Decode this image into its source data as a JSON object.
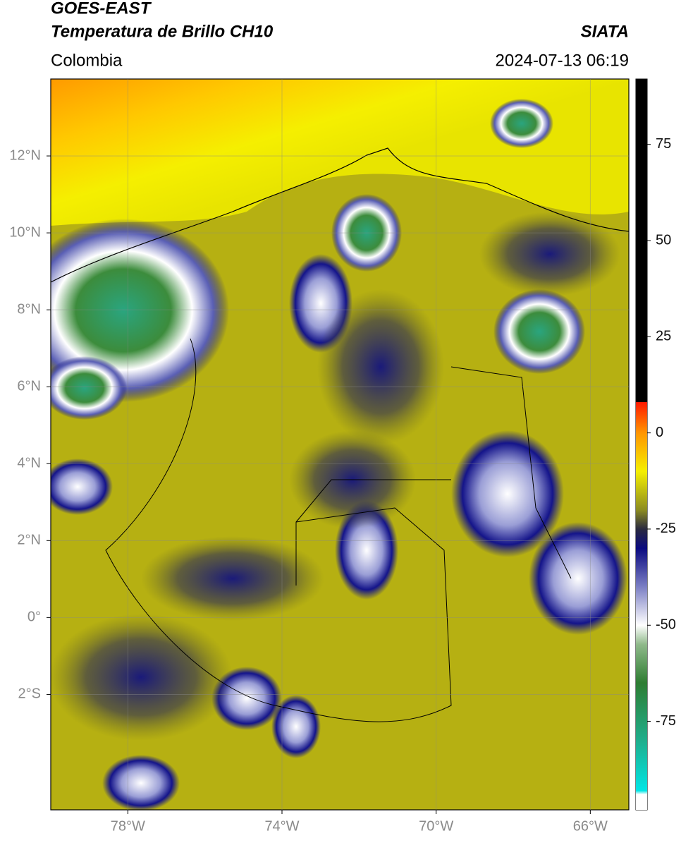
{
  "header": {
    "title": "GOES-EAST",
    "subtitle": "Temperatura de Brillo CH10",
    "source": "SIATA",
    "region": "Colombia",
    "datetime": "2024-07-13 06:19"
  },
  "map": {
    "xlim": [
      -80,
      -65
    ],
    "ylim": [
      -5,
      14
    ],
    "xticks": [
      {
        "value": -78,
        "label": "78°W"
      },
      {
        "value": -74,
        "label": "74°W"
      },
      {
        "value": -70,
        "label": "70°W"
      },
      {
        "value": -66,
        "label": "66°W"
      }
    ],
    "yticks": [
      {
        "value": 12,
        "label": "12°N"
      },
      {
        "value": 10,
        "label": "10°N"
      },
      {
        "value": 8,
        "label": "8°N"
      },
      {
        "value": 6,
        "label": "6°N"
      },
      {
        "value": 4,
        "label": "4°N"
      },
      {
        "value": 2,
        "label": "2°N"
      },
      {
        "value": 0,
        "label": "0°"
      },
      {
        "value": -2,
        "label": "2°S"
      }
    ],
    "grid": true
  },
  "colorbar": {
    "lim": [
      -98,
      92
    ],
    "ticks": [
      75,
      50,
      25,
      0,
      -25,
      -50,
      -75
    ],
    "stops": [
      {
        "value": -98,
        "color": "#ffffff"
      },
      {
        "value": -94,
        "color": "#ffffff"
      },
      {
        "value": -93,
        "color": "#00e5e5"
      },
      {
        "value": -80,
        "color": "#1fae8c"
      },
      {
        "value": -65,
        "color": "#2e7d32"
      },
      {
        "value": -55,
        "color": "#8fb98a"
      },
      {
        "value": -50,
        "color": "#ffffff"
      },
      {
        "value": -40,
        "color": "#7b7fc4"
      },
      {
        "value": -30,
        "color": "#0a0a80"
      },
      {
        "value": -25,
        "color": "#2a2a40"
      },
      {
        "value": -20,
        "color": "#8c8c20"
      },
      {
        "value": -10,
        "color": "#f5ef00"
      },
      {
        "value": 0,
        "color": "#ff9500"
      },
      {
        "value": 8,
        "color": "#ff1a00"
      },
      {
        "value": 8.01,
        "color": "#000000"
      },
      {
        "value": 92,
        "color": "#000000"
      }
    ]
  }
}
